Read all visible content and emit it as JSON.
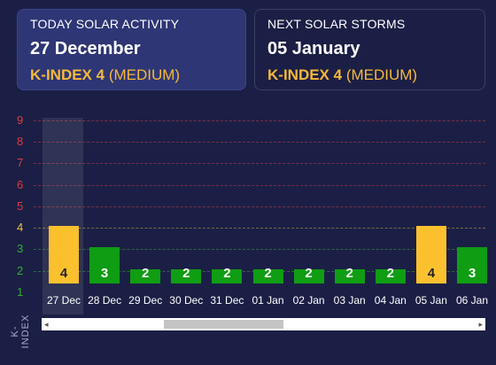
{
  "today": {
    "heading": "TODAY SOLAR ACTIVITY",
    "date": "27 December",
    "kindex_label": "K-INDEX 4",
    "level": "(MEDIUM)"
  },
  "next": {
    "heading": "NEXT SOLAR STORMS",
    "date": "05 January",
    "kindex_label": "K-INDEX 4",
    "level": "(MEDIUM)"
  },
  "colors": {
    "background": "#1b1f45",
    "accent_yellow": "#f6b93a",
    "bar_green": "#0f9d13",
    "bar_yellow": "#fbc02d"
  },
  "chart_data": {
    "type": "bar",
    "ylabel": "K-INDEX",
    "ylim": [
      1,
      9
    ],
    "y_ticks": [
      "1",
      "2",
      "3",
      "4",
      "5",
      "6",
      "7",
      "8",
      "9"
    ],
    "categories": [
      "27 Dec",
      "28 Dec",
      "29 Dec",
      "30 Dec",
      "31 Dec",
      "01 Jan",
      "02 Jan",
      "03 Jan",
      "04 Jan",
      "05 Jan",
      "06 Jan"
    ],
    "values": [
      4,
      3,
      2,
      2,
      2,
      2,
      2,
      2,
      2,
      4,
      3
    ],
    "value_labels": [
      "4",
      "3",
      "2",
      "2",
      "2",
      "2",
      "2",
      "2",
      "2",
      "4",
      "3"
    ],
    "bar_colors": [
      "#fbc02d",
      "#0f9d13",
      "#0f9d13",
      "#0f9d13",
      "#0f9d13",
      "#0f9d13",
      "#0f9d13",
      "#0f9d13",
      "#0f9d13",
      "#fbc02d",
      "#0f9d13"
    ],
    "selected_category": "27 Dec",
    "grid": true
  },
  "scrollbar": {
    "left_arrow": "◂",
    "right_arrow": "▸"
  }
}
